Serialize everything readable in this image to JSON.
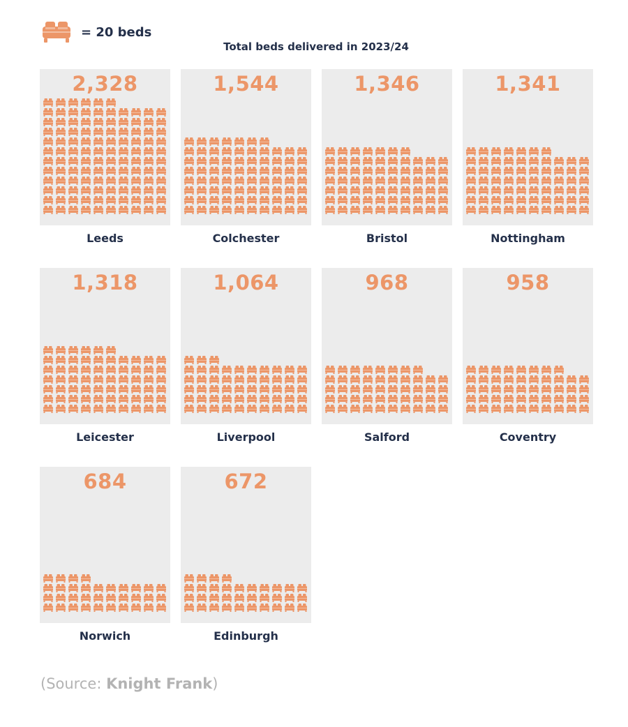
{
  "legend": {
    "text": "= 20 beds",
    "icon": "bed-icon"
  },
  "title": "Total beds delivered in 2023/24",
  "colors": {
    "accent": "#ec9668",
    "panel": "#ececec",
    "text": "#24304a",
    "source": "#b3b3b3"
  },
  "chart_data": {
    "type": "bar",
    "unit_per_icon": 20,
    "title": "Total beds delivered in 2023/24",
    "categories": [
      "Leeds",
      "Colchester",
      "Bristol",
      "Nottingham",
      "Leicester",
      "Liverpool",
      "Salford",
      "Coventry",
      "Norwich",
      "Edinburgh"
    ],
    "values": [
      2328,
      1544,
      1346,
      1341,
      1318,
      1064,
      968,
      958,
      684,
      672
    ],
    "value_labels": [
      "2,328",
      "1,544",
      "1,346",
      "1,341",
      "1,318",
      "1,064",
      "968",
      "958",
      "684",
      "672"
    ]
  },
  "source": {
    "prefix": "(Source: ",
    "brand": "Knight Frank",
    "suffix": ")"
  }
}
